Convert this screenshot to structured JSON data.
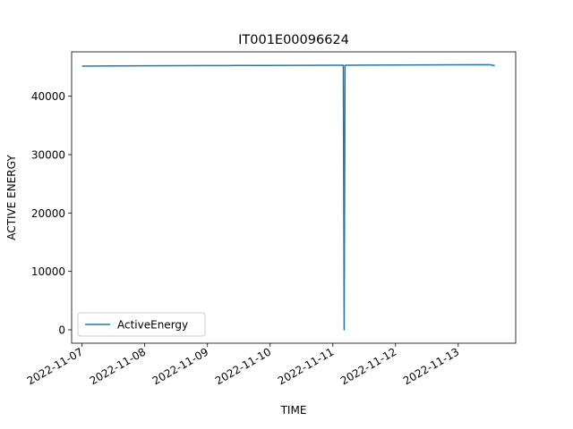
{
  "chart_data": {
    "type": "line",
    "title": "IT001E00096624",
    "xlabel": "TIME",
    "ylabel": "ACTIVE ENERGY",
    "x_tick_labels": [
      "2022-11-07",
      "2022-11-08",
      "2022-11-09",
      "2022-11-10",
      "2022-11-11",
      "2022-11-12",
      "2022-11-13"
    ],
    "y_tick_labels": [
      "0",
      "10000",
      "20000",
      "30000",
      "40000"
    ],
    "y_ticks": [
      0,
      10000,
      20000,
      30000,
      40000
    ],
    "xlim": [
      "2022-11-06 20:00",
      "2022-11-13 22:00"
    ],
    "ylim": [
      -2300,
      47600
    ],
    "grid": false,
    "legend_position": "lower left",
    "series": [
      {
        "name": "ActiveEnergy",
        "color": "#1f77b4",
        "points": [
          [
            "2022-11-07 00:00",
            45150
          ],
          [
            "2022-11-07 12:00",
            45180
          ],
          [
            "2022-11-08 00:00",
            45200
          ],
          [
            "2022-11-08 12:00",
            45220
          ],
          [
            "2022-11-09 00:00",
            45240
          ],
          [
            "2022-11-09 12:00",
            45260
          ],
          [
            "2022-11-10 00:00",
            45275
          ],
          [
            "2022-11-10 12:00",
            45290
          ],
          [
            "2022-11-11 00:00",
            45300
          ],
          [
            "2022-11-11 04:00",
            45305
          ],
          [
            "2022-11-11 04:20",
            0
          ],
          [
            "2022-11-11 04:40",
            45310
          ],
          [
            "2022-11-11 12:00",
            45320
          ],
          [
            "2022-11-12 00:00",
            45340
          ],
          [
            "2022-11-12 12:00",
            45360
          ],
          [
            "2022-11-13 00:00",
            45380
          ],
          [
            "2022-11-13 12:00",
            45400
          ],
          [
            "2022-11-13 14:00",
            45250
          ]
        ]
      }
    ]
  }
}
